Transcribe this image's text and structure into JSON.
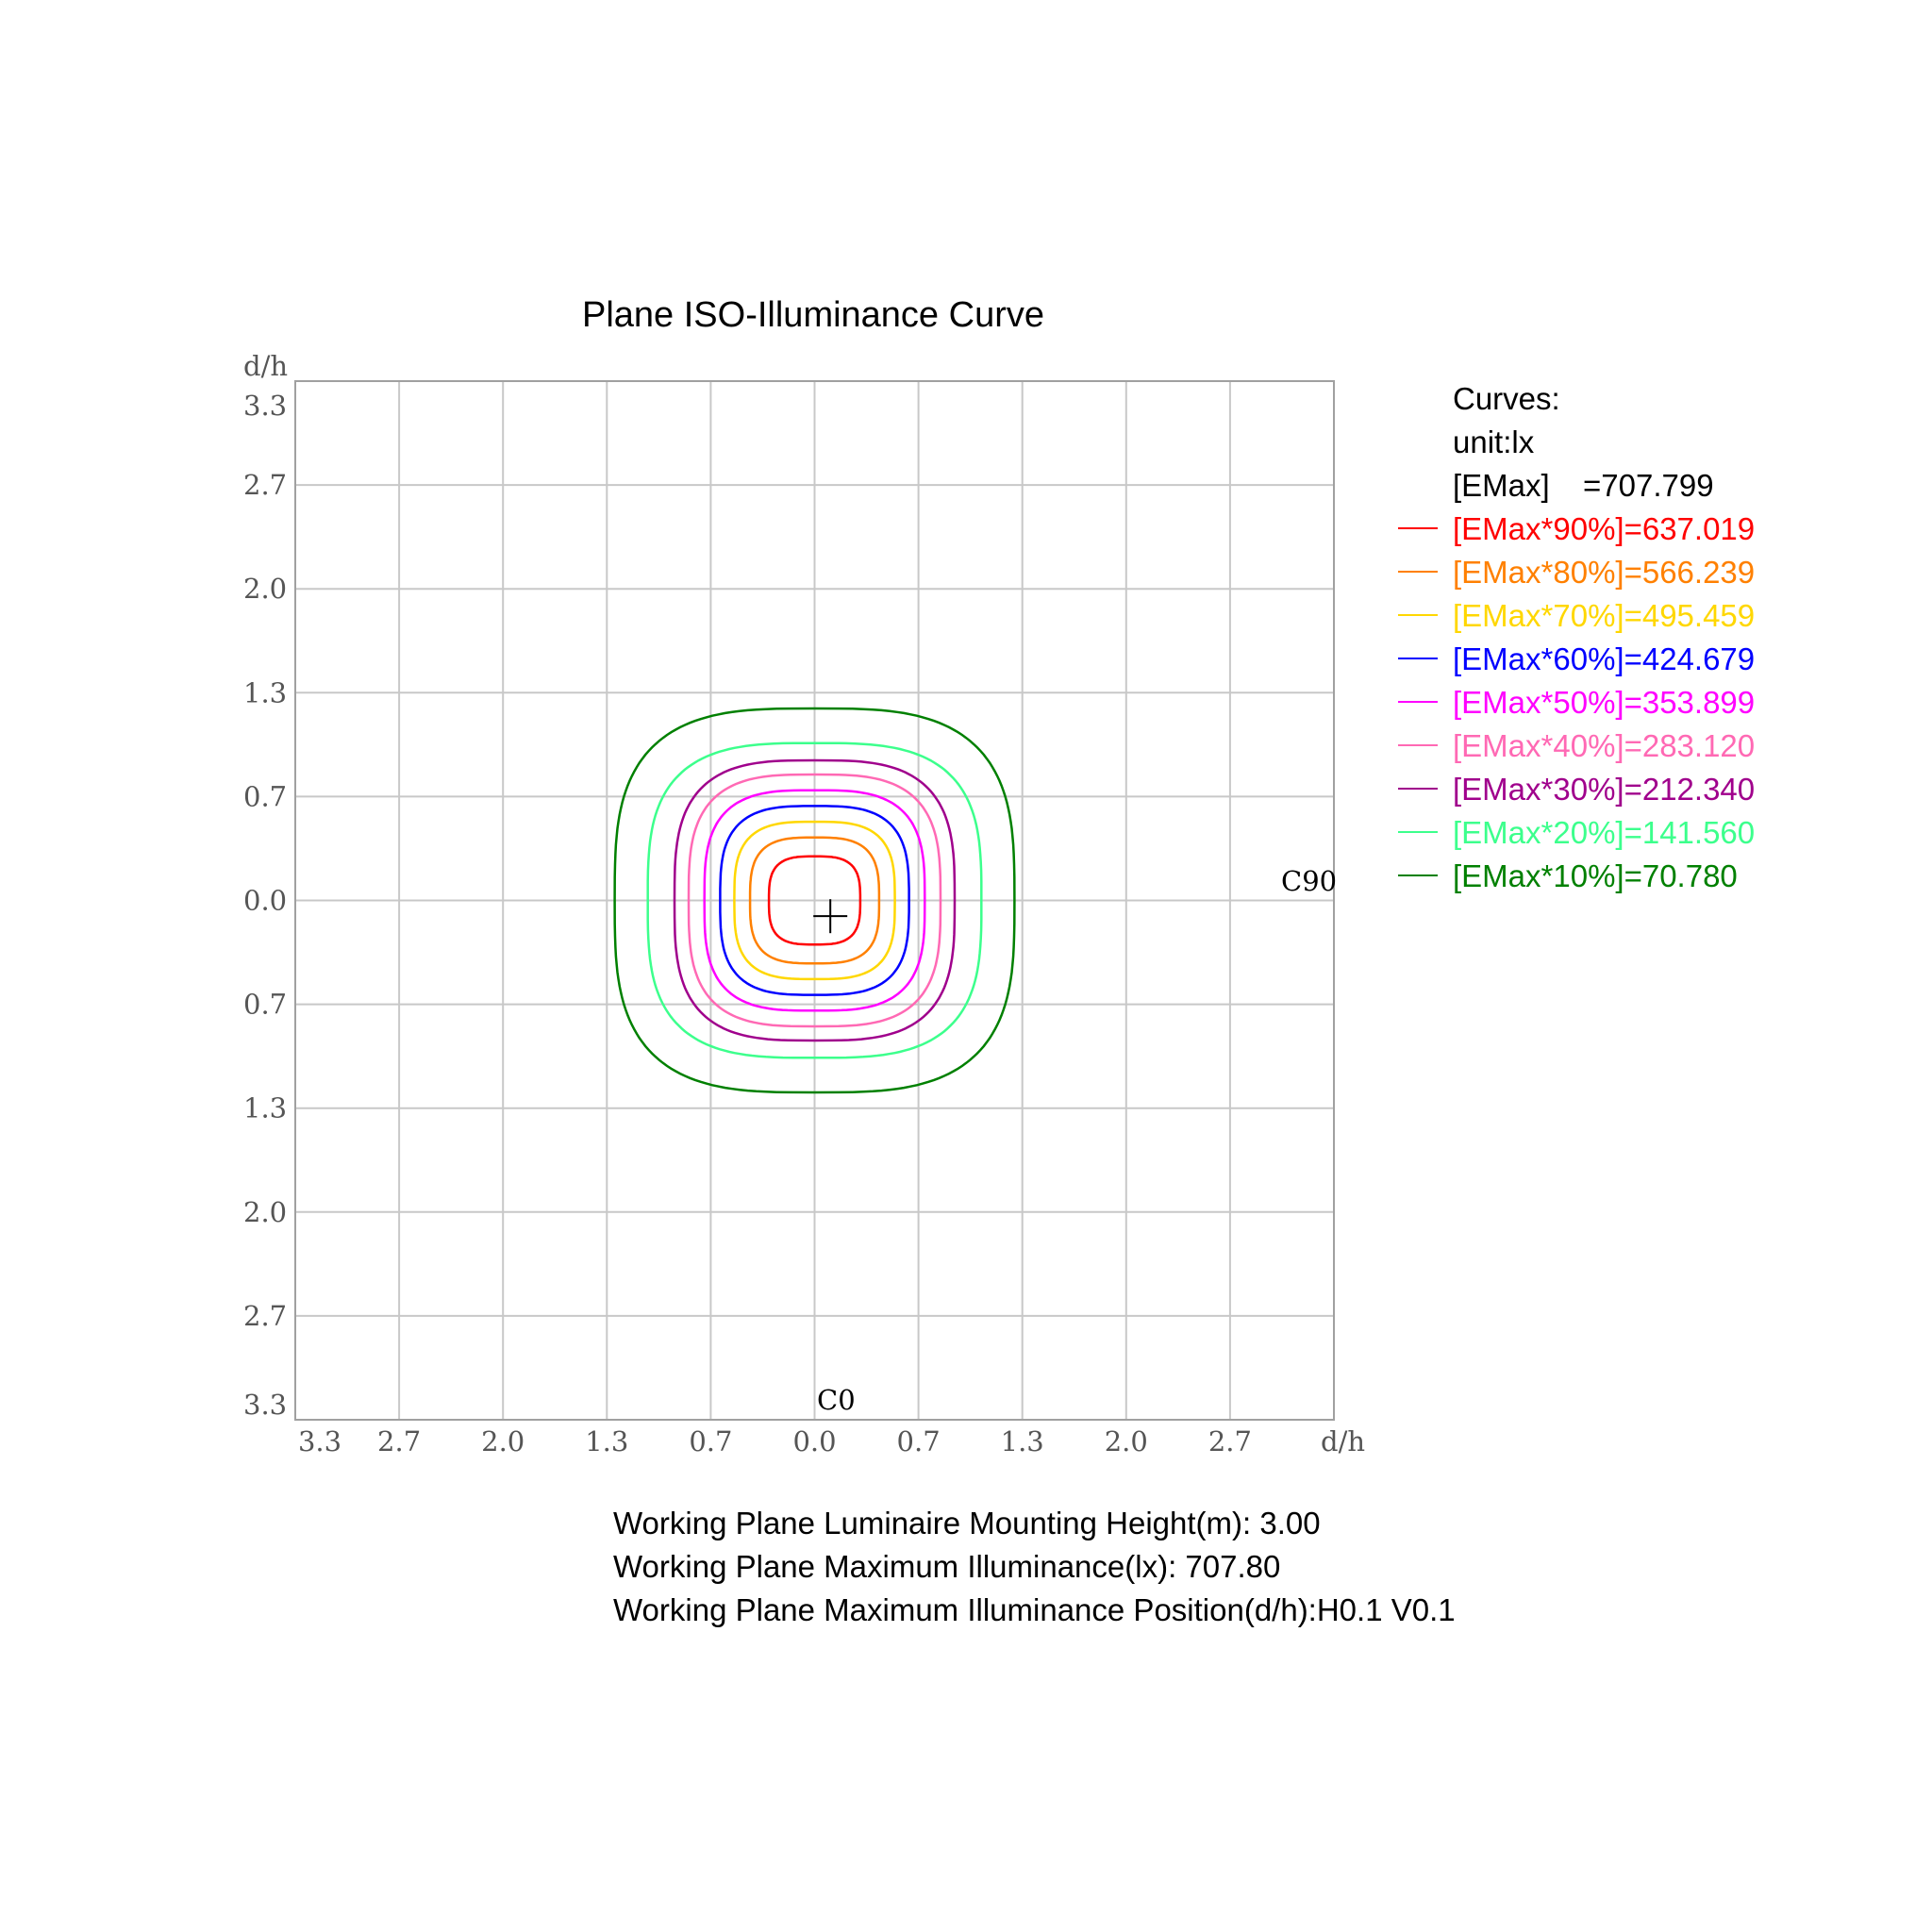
{
  "chart_data": {
    "type": "contour",
    "title": "Plane ISO-Illuminance Curve",
    "xlabel": "d/h",
    "ylabel": "d/h",
    "x_ticks": [
      "3.3",
      "2.7",
      "2.0",
      "1.3",
      "0.7",
      "0.0",
      "0.7",
      "1.3",
      "2.0",
      "2.7"
    ],
    "y_ticks": [
      "3.3",
      "2.7",
      "2.0",
      "1.3",
      "0.7",
      "0.0",
      "0.7",
      "1.3",
      "2.0",
      "2.7",
      "3.3"
    ],
    "xlim": [
      -3.3,
      3.3
    ],
    "ylim": [
      -3.3,
      3.3
    ],
    "grid": true,
    "axis_labels": {
      "c0": "C0",
      "c90": "C90"
    },
    "max_marker": {
      "x": 0.1,
      "y": 0.1
    },
    "legend": {
      "heading": "Curves:",
      "unit": "unit:lx",
      "emax_label": "[EMax]",
      "emax_value": "=707.799",
      "position": "right"
    },
    "series": [
      {
        "name": "[EMax*90%]=637.019",
        "percent": 90,
        "value": 637.019,
        "color": "#ff0000",
        "half_width": 0.29,
        "half_height": 0.28
      },
      {
        "name": "[EMax*80%]=566.239",
        "percent": 80,
        "value": 566.239,
        "color": "#ff8000",
        "half_width": 0.41,
        "half_height": 0.4
      },
      {
        "name": "[EMax*70%]=495.459",
        "percent": 70,
        "value": 495.459,
        "color": "#ffd700",
        "half_width": 0.51,
        "half_height": 0.5
      },
      {
        "name": "[EMax*60%]=424.679",
        "percent": 60,
        "value": 424.679,
        "color": "#0000ff",
        "half_width": 0.6,
        "half_height": 0.6
      },
      {
        "name": "[EMax*50%]=353.899",
        "percent": 50,
        "value": 353.899,
        "color": "#ff00ff",
        "half_width": 0.7,
        "half_height": 0.7
      },
      {
        "name": "[EMax*40%]=283.120",
        "percent": 40,
        "value": 283.12,
        "color": "#ff69b4",
        "half_width": 0.8,
        "half_height": 0.8
      },
      {
        "name": "[EMax*30%]=212.340",
        "percent": 30,
        "value": 212.34,
        "color": "#a0008c",
        "half_width": 0.89,
        "half_height": 0.89
      },
      {
        "name": "[EMax*20%]=141.560",
        "percent": 20,
        "value": 141.56,
        "color": "#3cff8c",
        "half_width": 1.06,
        "half_height": 1.0
      },
      {
        "name": "[EMax*10%]=70.780",
        "percent": 10,
        "value": 70.78,
        "color": "#008000",
        "half_width": 1.27,
        "half_height": 1.22
      }
    ]
  },
  "info": {
    "line1": "Working Plane Luminaire Mounting Height(m): 3.00",
    "line2": "Working Plane Maximum Illuminance(lx): 707.80",
    "line3": "Working Plane Maximum Illuminance Position(d/h):H0.1 V0.1"
  }
}
